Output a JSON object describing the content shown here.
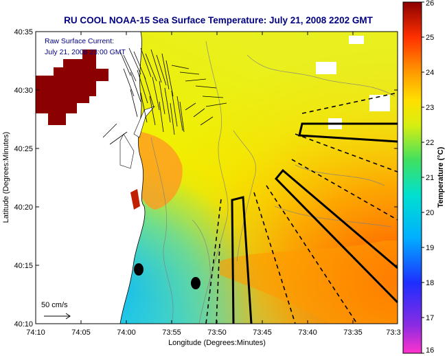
{
  "title": "RU COOL  NOAA-15  Sea Surface Temperature:  July 21, 2008 2202 GMT",
  "annotation": {
    "line1": "Raw Surface Current:",
    "line2": "July 21, 2008 23:00 GMT"
  },
  "scale_label": "50 cm/s",
  "x_axis": {
    "label": "Longitude (Degrees:Minutes)",
    "ticks": [
      "74:10",
      "74:05",
      "74:00",
      "73:55",
      "73:50",
      "73:45",
      "73:40",
      "73:35",
      "73:3"
    ]
  },
  "y_axis": {
    "label": "Latitude (Degrees:Minutes)",
    "ticks": [
      "40:35",
      "40:30",
      "40:25",
      "40:20",
      "40:15",
      "40:10"
    ]
  },
  "colorbar": {
    "label": "Temperature (°C)",
    "ticks": [
      "26",
      "25",
      "24",
      "23",
      "22",
      "21",
      "20",
      "19",
      "18",
      "17",
      "16"
    ]
  },
  "colors": {
    "title": "#000080",
    "land": "#ffffff",
    "masked": "#8b0000",
    "track": "#000000"
  }
}
